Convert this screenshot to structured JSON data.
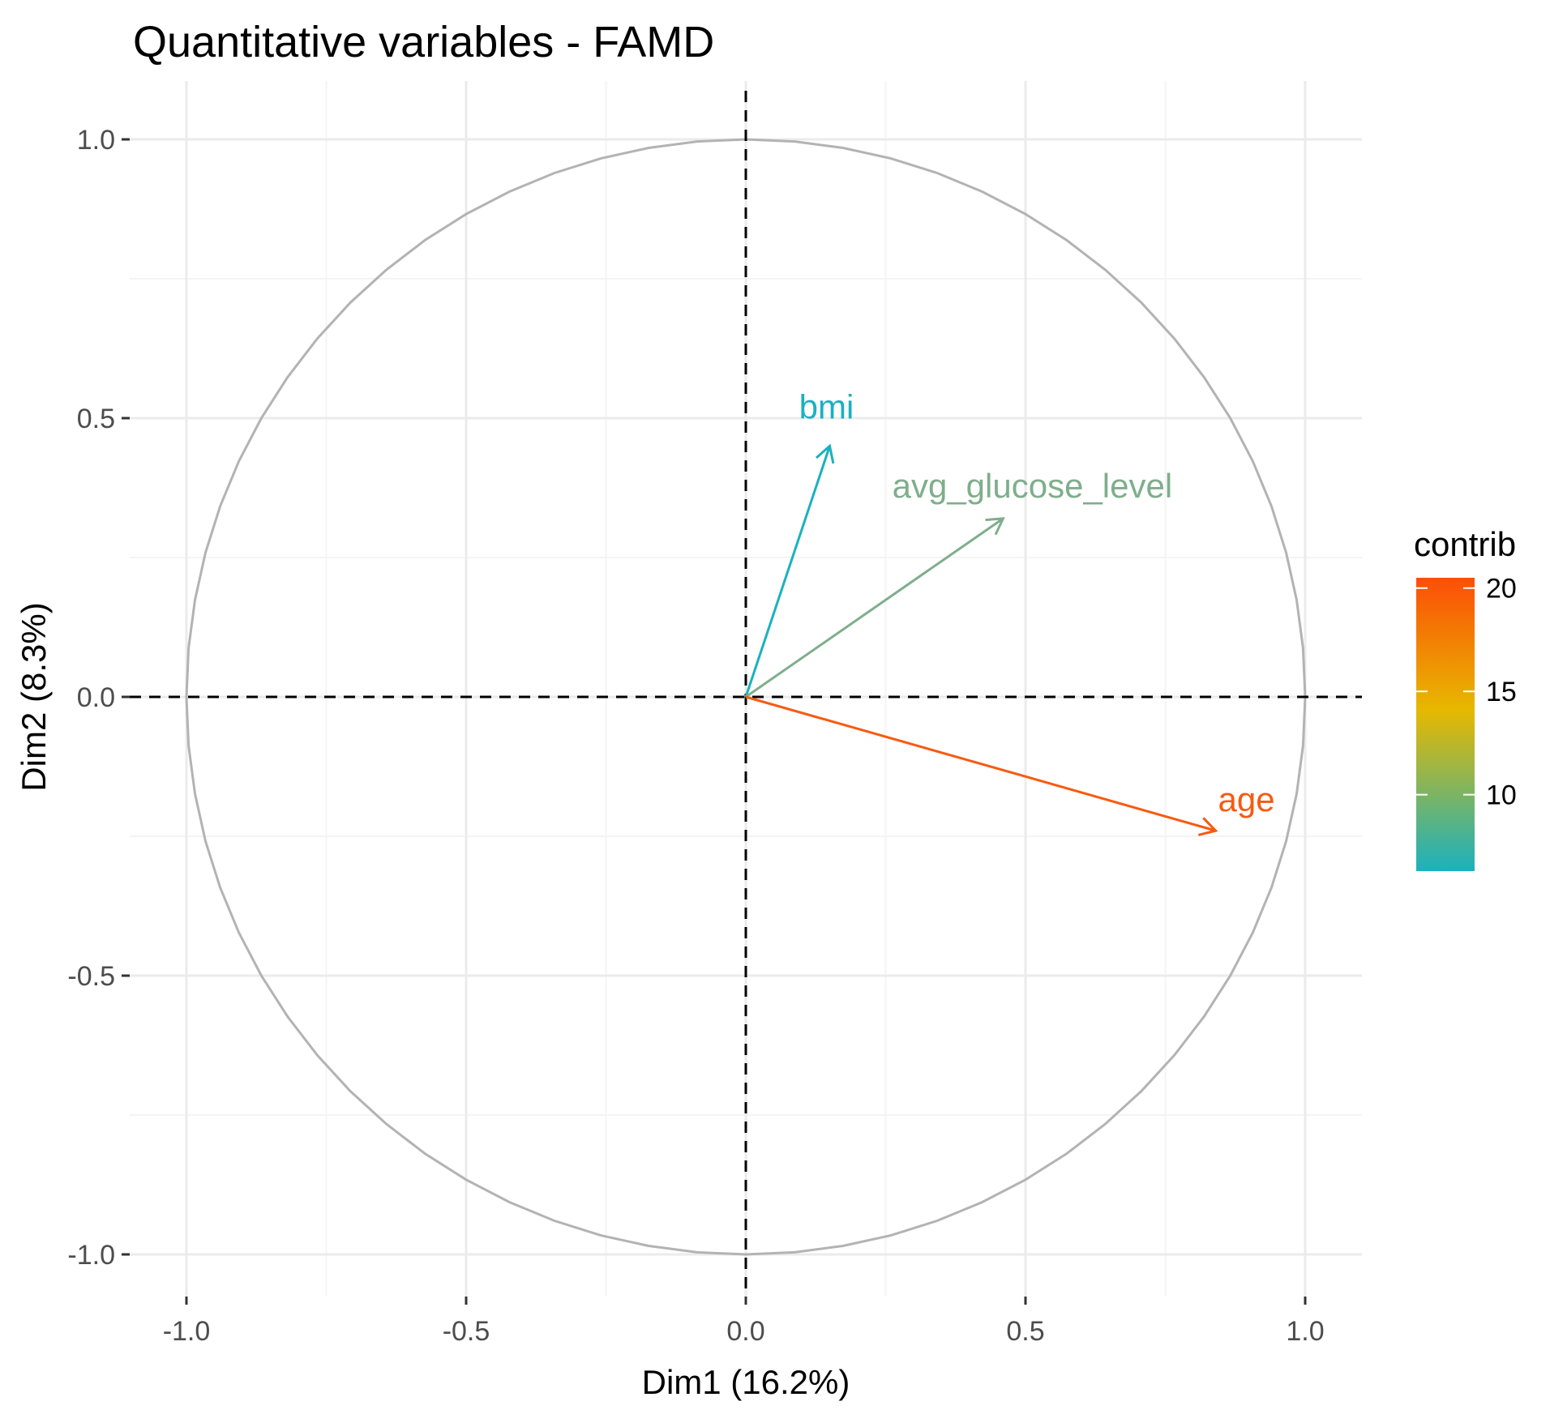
{
  "chart_data": {
    "type": "correlation-circle",
    "title": "Quantitative variables - FAMD",
    "xlabel": "Dim1 (16.2%)",
    "ylabel": "Dim2 (8.3%)",
    "xlim": [
      -1.1,
      1.1
    ],
    "ylim": [
      -1.08,
      1.08
    ],
    "x_ticks": [
      {
        "value": -1.0,
        "label": "-1.0"
      },
      {
        "value": -0.5,
        "label": "-0.5"
      },
      {
        "value": 0.0,
        "label": "0.0"
      },
      {
        "value": 0.5,
        "label": "0.5"
      },
      {
        "value": 1.0,
        "label": "1.0"
      }
    ],
    "y_ticks": [
      {
        "value": -1.0,
        "label": "-1.0"
      },
      {
        "value": -0.5,
        "label": "-0.5"
      },
      {
        "value": 0.0,
        "label": "0.0"
      },
      {
        "value": 0.5,
        "label": "0.5"
      },
      {
        "value": 1.0,
        "label": "1.0"
      }
    ],
    "grid": true,
    "unit_circle": true,
    "reference_lines": "dashed at x=0 and y=0",
    "variables": [
      {
        "name": "bmi",
        "x": 0.15,
        "y": 0.45,
        "contrib": 6.5,
        "color": "#1BB1BF"
      },
      {
        "name": "avg_glucose_level",
        "x": 0.46,
        "y": 0.32,
        "contrib": 9.5,
        "color": "#7FAE8C"
      },
      {
        "name": "age",
        "x": 0.84,
        "y": -0.24,
        "contrib": 20.5,
        "color": "#F85A10"
      }
    ],
    "legend": {
      "title": "contrib",
      "position": "right",
      "range": [
        6.3,
        20.5
      ],
      "ticks": [
        {
          "value": 10,
          "label": "10"
        },
        {
          "value": 15,
          "label": "15"
        },
        {
          "value": 20,
          "label": "20"
        }
      ],
      "gradient": [
        "#1BB1BF",
        "#E7B800",
        "#FC4E07"
      ]
    },
    "colors": {
      "circle": "#B3B3B3",
      "grid_major": "#EBEBEB",
      "grid_minor": "#F4F4F4",
      "reference": "#000000"
    }
  }
}
